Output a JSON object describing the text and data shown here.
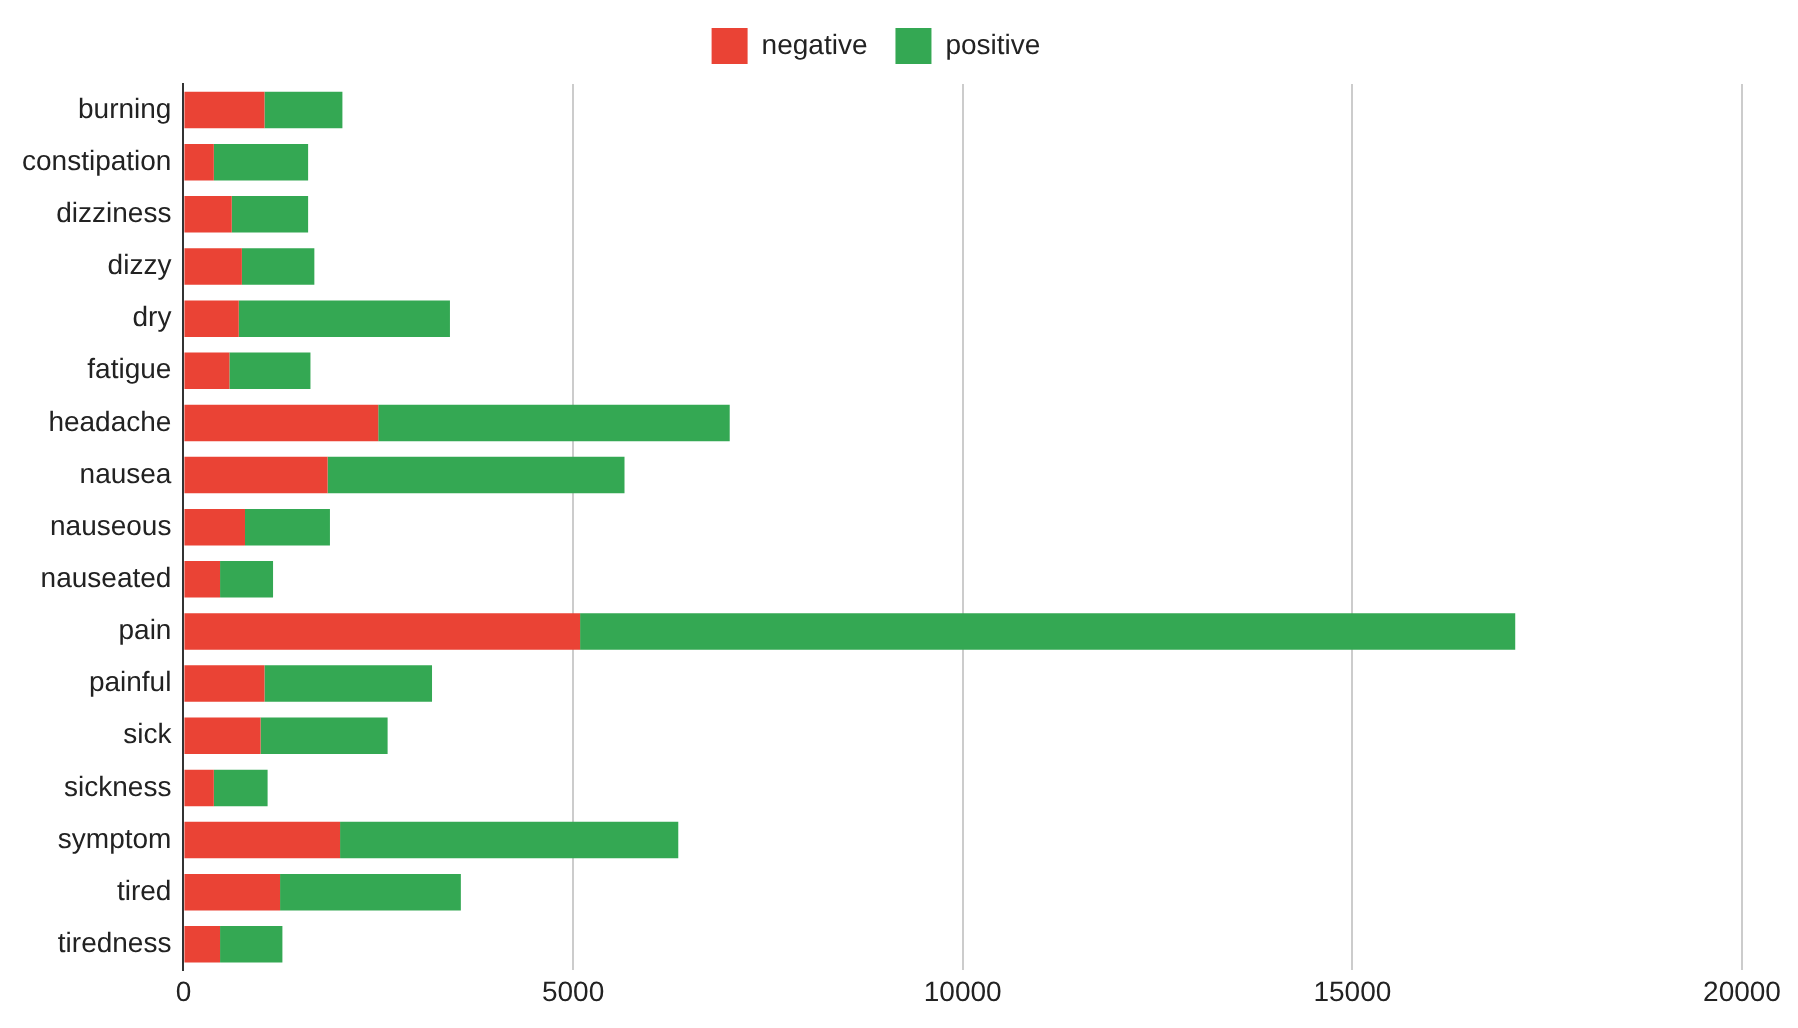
{
  "chart_data": {
    "type": "bar",
    "orientation": "horizontal",
    "stacked": true,
    "categories": [
      "burning",
      "constipation",
      "dizziness",
      "dizzy",
      "dry",
      "fatigue",
      "headache",
      "nausea",
      "nauseous",
      "nauseated",
      "pain",
      "painful",
      "sick",
      "sickness",
      "symptom",
      "tired",
      "tiredness"
    ],
    "series": [
      {
        "name": "negative",
        "color": "#ea4335",
        "values": [
          1040,
          390,
          620,
          750,
          710,
          590,
          2500,
          1850,
          790,
          470,
          5090,
          1040,
          990,
          390,
          2010,
          1240,
          470
        ]
      },
      {
        "name": "positive",
        "color": "#34a853",
        "values": [
          1000,
          1210,
          980,
          930,
          2710,
          1040,
          4510,
          3810,
          1090,
          680,
          12000,
          2150,
          1630,
          690,
          4340,
          2320,
          800
        ]
      }
    ],
    "xlim": [
      0,
      20000
    ],
    "xticks": [
      0,
      5000,
      10000,
      15000,
      20000
    ],
    "grid": "x",
    "legend": "top"
  }
}
